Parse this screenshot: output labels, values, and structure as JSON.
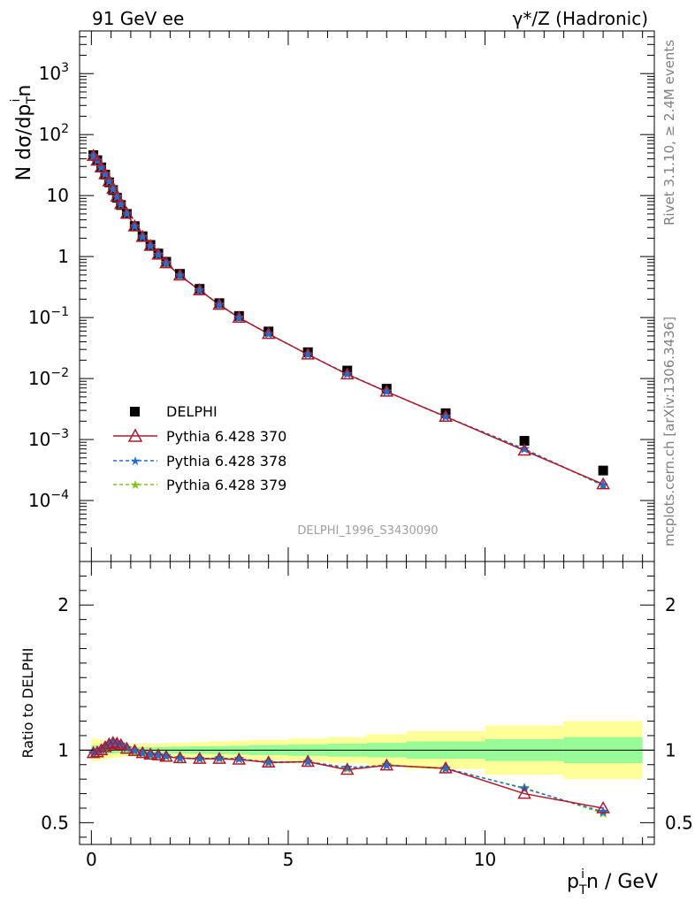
{
  "header": {
    "left_title": "91 GeV ee",
    "right_title": "γ*/Z (Hadronic)"
  },
  "side_labels": {
    "rivet": "Rivet 3.1.10, ≥ 2.4M events",
    "mcplots": "mcplots.cern.ch [arXiv:1306.3436]"
  },
  "chart_data": [
    {
      "type": "scatter",
      "title": "91 GeV ee",
      "subtitle": "γ*/Z (Hadronic)",
      "analysis_label": "DELPHI_1996_S3430090",
      "ylabel": "N dσ/dp_T^i n",
      "ylabel_main": "N dσ/dp",
      "ylabel_sup": "i",
      "ylabel_sub": "T",
      "ylabel_tail": "n",
      "yscale": "log",
      "ylim": [
        1e-05,
        5000
      ],
      "xlim": [
        -0.3,
        14.3
      ],
      "y_tick_labels": [
        "10^-4",
        "10^-3",
        "10^-2",
        "10^-1",
        "1",
        "10",
        "10^2",
        "10^3"
      ],
      "legend_placement": "center-left",
      "x": [
        0.05,
        0.15,
        0.25,
        0.35,
        0.45,
        0.55,
        0.65,
        0.75,
        0.9,
        1.1,
        1.3,
        1.5,
        1.7,
        1.9,
        2.25,
        2.75,
        3.25,
        3.75,
        4.5,
        5.5,
        6.5,
        7.5,
        9.0,
        11.0,
        13.0
      ],
      "series": [
        {
          "name": "DELPHI",
          "color": "#000000",
          "marker": "square",
          "values": [
            46,
            38,
            29,
            22,
            16.5,
            12.3,
            9.2,
            7.0,
            5.0,
            3.15,
            2.15,
            1.55,
            1.12,
            0.82,
            0.52,
            0.295,
            0.172,
            0.106,
            0.059,
            0.027,
            0.0135,
            0.0068,
            0.0027,
            0.00095,
            0.00031
          ]
        },
        {
          "name": "Pythia 6.428 370",
          "color": "#b2182b",
          "marker": "triangle-open",
          "values": [
            45,
            37.5,
            29,
            22.5,
            17.2,
            12.9,
            9.6,
            7.25,
            5.05,
            3.13,
            2.1,
            1.5,
            1.08,
            0.78,
            0.49,
            0.28,
            0.162,
            0.0995,
            0.054,
            0.0248,
            0.0117,
            0.0061,
            0.00237,
            0.00066,
            0.000185
          ]
        },
        {
          "name": "Pythia 6.428 378",
          "color": "#1f6fd6",
          "marker": "star",
          "values": [
            45,
            37.6,
            29.2,
            22.6,
            17.3,
            13.0,
            9.6,
            7.28,
            5.08,
            3.14,
            2.11,
            1.5,
            1.08,
            0.79,
            0.492,
            0.281,
            0.163,
            0.1,
            0.054,
            0.0249,
            0.0119,
            0.0061,
            0.00237,
            0.0007,
            0.000178
          ]
        },
        {
          "name": "Pythia 6.428 379",
          "color": "#7dc51a",
          "marker": "star",
          "values": [
            44.5,
            37.3,
            29,
            22.4,
            17.1,
            12.8,
            9.5,
            7.2,
            5.05,
            3.12,
            2.1,
            1.49,
            1.07,
            0.78,
            0.49,
            0.28,
            0.162,
            0.0995,
            0.0537,
            0.0248,
            0.0118,
            0.0061,
            0.00235,
            0.0007,
            0.000175
          ]
        }
      ]
    },
    {
      "type": "line",
      "ylabel": "Ratio to DELPHI",
      "xlabel": "p_T^i n / GeV",
      "xlabel_main": "p",
      "xlabel_sup": "i",
      "xlabel_sub": "T",
      "xlabel_tail": "n / GeV",
      "ylim": [
        0.35,
        2.3
      ],
      "xlim": [
        -0.3,
        14.3
      ],
      "x_tick_labels": [
        "0",
        "5",
        "10"
      ],
      "y_tick_labels": [
        "0.5",
        "1",
        "2"
      ],
      "x": [
        0.05,
        0.15,
        0.25,
        0.35,
        0.45,
        0.55,
        0.65,
        0.75,
        0.9,
        1.1,
        1.3,
        1.5,
        1.7,
        1.9,
        2.25,
        2.75,
        3.25,
        3.75,
        4.5,
        5.5,
        6.5,
        7.5,
        9.0,
        11.0,
        13.0
      ],
      "bands": {
        "bin_edges": [
          0,
          0.1,
          0.2,
          0.3,
          0.4,
          0.5,
          0.6,
          0.7,
          0.8,
          1.0,
          1.2,
          1.4,
          1.6,
          1.8,
          2.0,
          2.5,
          3.0,
          3.5,
          4.0,
          5.0,
          6.0,
          7.0,
          8.0,
          10.0,
          12.0,
          14.0
        ],
        "green_halfwidth": [
          0.035,
          0.032,
          0.03,
          0.028,
          0.026,
          0.024,
          0.022,
          0.022,
          0.02,
          0.02,
          0.02,
          0.02,
          0.022,
          0.022,
          0.024,
          0.026,
          0.028,
          0.03,
          0.035,
          0.04,
          0.045,
          0.05,
          0.06,
          0.075,
          0.09,
          0.14
        ],
        "yellow_halfwidth": [
          0.08,
          0.075,
          0.07,
          0.065,
          0.06,
          0.055,
          0.05,
          0.05,
          0.045,
          0.045,
          0.045,
          0.045,
          0.045,
          0.048,
          0.05,
          0.055,
          0.06,
          0.065,
          0.07,
          0.08,
          0.09,
          0.11,
          0.13,
          0.17,
          0.2,
          0.3
        ],
        "green_color": "#98fb98",
        "yellow_color": "#ffff99"
      },
      "series": [
        {
          "name": "Pythia 6.428 370",
          "color": "#b2182b",
          "values": [
            0.98,
            0.985,
            1.0,
            1.02,
            1.04,
            1.05,
            1.045,
            1.035,
            1.01,
            0.995,
            0.98,
            0.97,
            0.965,
            0.955,
            0.945,
            0.94,
            0.94,
            0.935,
            0.915,
            0.92,
            0.865,
            0.895,
            0.875,
            0.7,
            0.6
          ]
        },
        {
          "name": "Pythia 6.428 378",
          "color": "#1f6fd6",
          "values": [
            0.98,
            0.99,
            1.005,
            1.025,
            1.045,
            1.055,
            1.045,
            1.04,
            1.015,
            0.997,
            0.98,
            0.97,
            0.965,
            0.96,
            0.946,
            0.942,
            0.945,
            0.94,
            0.918,
            0.92,
            0.88,
            0.895,
            0.875,
            0.735,
            0.575
          ]
        },
        {
          "name": "Pythia 6.428 379",
          "color": "#7dc51a",
          "values": [
            0.975,
            0.985,
            1.0,
            1.02,
            1.04,
            1.05,
            1.04,
            1.03,
            1.01,
            0.99,
            0.975,
            0.965,
            0.96,
            0.955,
            0.942,
            0.94,
            0.942,
            0.938,
            0.912,
            0.918,
            0.872,
            0.9,
            0.87,
            0.74,
            0.565
          ]
        }
      ]
    }
  ]
}
